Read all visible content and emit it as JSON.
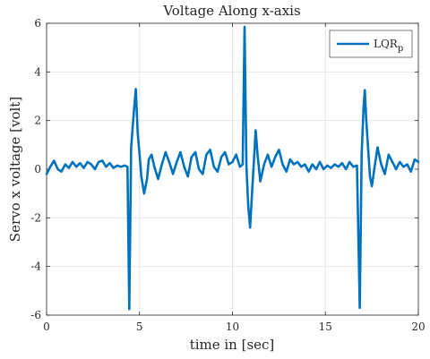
{
  "chart_data": {
    "type": "line",
    "title": "Voltage Along x-axis",
    "xlabel": "time in [sec]",
    "ylabel": "Servo x voltage [volt]",
    "xlim": [
      0,
      20
    ],
    "ylim": [
      -6,
      6
    ],
    "x_ticks": [
      0,
      5,
      10,
      15,
      20
    ],
    "y_ticks": [
      -6,
      -4,
      -2,
      0,
      2,
      4,
      6
    ],
    "grid": true,
    "legend_position": "top-right",
    "series": [
      {
        "name": "LQR",
        "name_subscript": "p",
        "color": "#0072BD",
        "points": [
          [
            0.0,
            -0.2
          ],
          [
            0.2,
            0.1
          ],
          [
            0.4,
            0.35
          ],
          [
            0.6,
            0.0
          ],
          [
            0.8,
            -0.1
          ],
          [
            1.0,
            0.2
          ],
          [
            1.2,
            0.05
          ],
          [
            1.4,
            0.3
          ],
          [
            1.6,
            0.1
          ],
          [
            1.8,
            0.25
          ],
          [
            2.0,
            0.05
          ],
          [
            2.2,
            0.3
          ],
          [
            2.4,
            0.2
          ],
          [
            2.6,
            0.0
          ],
          [
            2.8,
            0.3
          ],
          [
            3.0,
            0.35
          ],
          [
            3.2,
            0.1
          ],
          [
            3.4,
            0.25
          ],
          [
            3.6,
            0.05
          ],
          [
            3.8,
            0.15
          ],
          [
            4.0,
            0.1
          ],
          [
            4.2,
            0.15
          ],
          [
            4.35,
            0.1
          ],
          [
            4.45,
            -5.75
          ],
          [
            4.55,
            0.9
          ],
          [
            4.7,
            2.4
          ],
          [
            4.8,
            3.3
          ],
          [
            4.9,
            1.5
          ],
          [
            5.0,
            0.6
          ],
          [
            5.1,
            -0.3
          ],
          [
            5.25,
            -1.0
          ],
          [
            5.4,
            -0.4
          ],
          [
            5.5,
            0.4
          ],
          [
            5.65,
            0.6
          ],
          [
            5.8,
            0.1
          ],
          [
            6.0,
            -0.4
          ],
          [
            6.2,
            0.2
          ],
          [
            6.4,
            0.7
          ],
          [
            6.6,
            0.3
          ],
          [
            6.8,
            -0.2
          ],
          [
            7.0,
            0.3
          ],
          [
            7.2,
            0.7
          ],
          [
            7.4,
            0.1
          ],
          [
            7.6,
            -0.3
          ],
          [
            7.8,
            0.5
          ],
          [
            8.0,
            0.7
          ],
          [
            8.2,
            0.0
          ],
          [
            8.4,
            -0.2
          ],
          [
            8.6,
            0.6
          ],
          [
            8.8,
            0.8
          ],
          [
            9.0,
            0.1
          ],
          [
            9.2,
            -0.1
          ],
          [
            9.4,
            0.5
          ],
          [
            9.6,
            0.7
          ],
          [
            9.8,
            0.2
          ],
          [
            10.0,
            0.3
          ],
          [
            10.2,
            0.6
          ],
          [
            10.4,
            0.1
          ],
          [
            10.55,
            0.2
          ],
          [
            10.65,
            5.85
          ],
          [
            10.75,
            0.1
          ],
          [
            10.85,
            -1.5
          ],
          [
            10.95,
            -2.4
          ],
          [
            11.05,
            -1.0
          ],
          [
            11.15,
            0.3
          ],
          [
            11.25,
            1.6
          ],
          [
            11.35,
            0.6
          ],
          [
            11.5,
            -0.5
          ],
          [
            11.7,
            0.2
          ],
          [
            11.9,
            0.6
          ],
          [
            12.1,
            0.1
          ],
          [
            12.3,
            0.5
          ],
          [
            12.5,
            0.8
          ],
          [
            12.7,
            0.2
          ],
          [
            12.9,
            -0.1
          ],
          [
            13.1,
            0.4
          ],
          [
            13.3,
            0.2
          ],
          [
            13.5,
            0.3
          ],
          [
            13.7,
            0.1
          ],
          [
            13.9,
            0.2
          ],
          [
            14.1,
            -0.1
          ],
          [
            14.3,
            0.2
          ],
          [
            14.5,
            0.0
          ],
          [
            14.7,
            0.3
          ],
          [
            14.9,
            0.0
          ],
          [
            15.1,
            0.15
          ],
          [
            15.3,
            0.05
          ],
          [
            15.5,
            0.2
          ],
          [
            15.7,
            0.1
          ],
          [
            15.9,
            0.25
          ],
          [
            16.1,
            0.0
          ],
          [
            16.3,
            0.3
          ],
          [
            16.5,
            0.1
          ],
          [
            16.7,
            0.15
          ],
          [
            16.85,
            -5.7
          ],
          [
            16.95,
            0.6
          ],
          [
            17.05,
            2.5
          ],
          [
            17.12,
            3.25
          ],
          [
            17.2,
            2.0
          ],
          [
            17.3,
            0.8
          ],
          [
            17.4,
            -0.3
          ],
          [
            17.5,
            -0.7
          ],
          [
            17.65,
            0.1
          ],
          [
            17.8,
            0.9
          ],
          [
            18.0,
            0.2
          ],
          [
            18.2,
            -0.2
          ],
          [
            18.4,
            0.6
          ],
          [
            18.6,
            0.3
          ],
          [
            18.8,
            0.0
          ],
          [
            19.0,
            0.3
          ],
          [
            19.2,
            0.1
          ],
          [
            19.4,
            0.2
          ],
          [
            19.6,
            -0.1
          ],
          [
            19.8,
            0.4
          ],
          [
            20.0,
            0.3
          ]
        ]
      }
    ]
  }
}
